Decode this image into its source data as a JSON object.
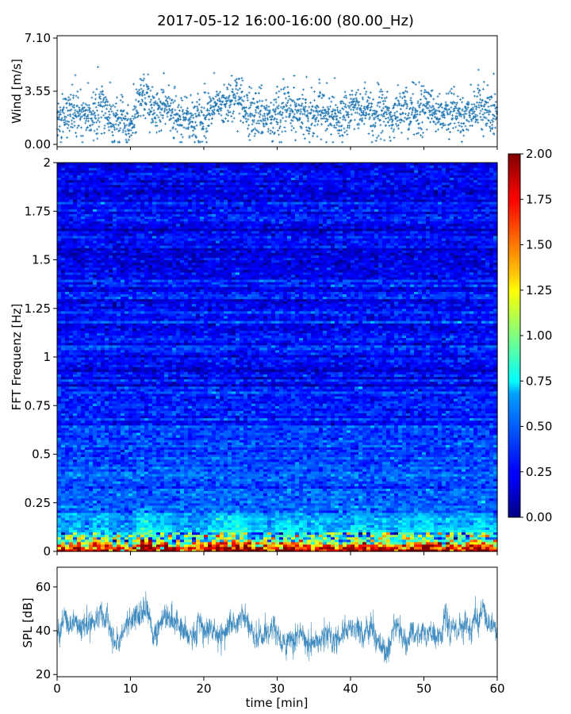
{
  "title": "2017-05-12 16:00-16:00 (80.00_Hz)",
  "x_axis": {
    "label": "time [min]",
    "range": [
      0,
      60
    ],
    "ticks": [
      "0",
      "10",
      "20",
      "30",
      "40",
      "50",
      "60"
    ]
  },
  "colors": {
    "series": "#1f77b4",
    "colormap": "jet"
  },
  "chart_data": [
    {
      "type": "scatter",
      "name": "wind",
      "ylabel": "Wind [m/s]",
      "xlim": [
        0,
        60
      ],
      "ylim": [
        0,
        7.1
      ],
      "yticks": [
        "0.00",
        "3.55",
        "7.10"
      ],
      "marker": "+",
      "x": [
        0.5,
        1.5,
        2.5,
        3.5,
        4.5,
        5.5,
        6.5,
        7.5,
        8.5,
        9.5,
        10.5,
        11.5,
        12.5,
        13.5,
        14.5,
        15.5,
        16.5,
        17.5,
        18.5,
        19.5,
        20.5,
        21.5,
        22.5,
        23.5,
        24.5,
        25.5,
        26.5,
        27.5,
        28.5,
        29.5,
        30.5,
        31.5,
        32.5,
        33.5,
        34.5,
        35.5,
        36.5,
        37.5,
        38.5,
        39.5,
        40.5,
        41.5,
        42.5,
        43.5,
        44.5,
        45.5,
        46.5,
        47.5,
        48.5,
        49.5,
        50.5,
        51.5,
        52.5,
        53.5,
        54.5,
        55.5,
        56.5,
        57.5,
        58.5,
        59.5
      ],
      "y": [
        1.8,
        2.0,
        2.2,
        1.6,
        1.9,
        2.3,
        2.6,
        1.4,
        1.7,
        1.2,
        1.6,
        3.2,
        2.8,
        2.1,
        2.4,
        2.2,
        1.5,
        1.9,
        1.6,
        1.4,
        2.0,
        2.3,
        2.6,
        2.8,
        3.4,
        2.4,
        2.1,
        2.2,
        1.9,
        1.7,
        2.3,
        2.6,
        1.9,
        2.2,
        1.8,
        2.4,
        2.0,
        1.7,
        1.6,
        1.8,
        2.4,
        2.2,
        2.0,
        1.9,
        2.3,
        1.6,
        2.1,
        2.5,
        2.0,
        2.3,
        2.6,
        2.2,
        2.0,
        2.4,
        2.1,
        1.9,
        2.3,
        2.7,
        2.2,
        1.8
      ],
      "points_per_minute": 35
    },
    {
      "type": "heatmap",
      "name": "spectrogram",
      "ylabel": "FFT Frequenz [Hz]",
      "xlim": [
        0,
        60
      ],
      "ylim": [
        0,
        2
      ],
      "yticks": [
        "0",
        "0.25",
        "0.5",
        "0.75",
        "1",
        "1.25",
        "1.5",
        "1.75",
        "2"
      ],
      "colorbar": {
        "range": [
          0,
          2
        ],
        "ticks": [
          "0.00",
          "0.25",
          "0.50",
          "0.75",
          "1.00",
          "1.25",
          "1.50",
          "1.75",
          "2.00"
        ],
        "colormap": "jet"
      },
      "freq_profile": [
        {
          "f": 0.0,
          "v": 1.9
        },
        {
          "f": 0.03,
          "v": 1.5
        },
        {
          "f": 0.06,
          "v": 0.95
        },
        {
          "f": 0.1,
          "v": 0.7
        },
        {
          "f": 0.15,
          "v": 0.55
        },
        {
          "f": 0.25,
          "v": 0.45
        },
        {
          "f": 0.5,
          "v": 0.35
        },
        {
          "f": 1.0,
          "v": 0.27
        },
        {
          "f": 1.5,
          "v": 0.24
        },
        {
          "f": 2.0,
          "v": 0.22
        }
      ]
    },
    {
      "type": "line",
      "name": "spl",
      "ylabel": "SPL [dB]",
      "xlim": [
        0,
        60
      ],
      "ylim": [
        19,
        69
      ],
      "yticks": [
        "20",
        "40",
        "60"
      ],
      "x": [
        0,
        2,
        4,
        6,
        7,
        8,
        9,
        10,
        11,
        12,
        13,
        14,
        15,
        16,
        18,
        20,
        22,
        24,
        25,
        26,
        28,
        30,
        31,
        32,
        34,
        36,
        38,
        40,
        41,
        42,
        44,
        45,
        46,
        47,
        48,
        50,
        52,
        54,
        56,
        58,
        60
      ],
      "y": [
        39,
        41,
        43,
        45,
        44,
        33,
        40,
        44,
        48,
        50,
        42,
        43,
        45,
        44,
        38,
        40,
        38,
        42,
        47,
        40,
        38,
        40,
        32,
        37,
        35,
        38,
        37,
        39,
        43,
        40,
        35,
        30,
        42,
        40,
        38,
        39,
        42,
        41,
        43,
        44,
        38
      ],
      "noise_band_db": 6
    }
  ]
}
